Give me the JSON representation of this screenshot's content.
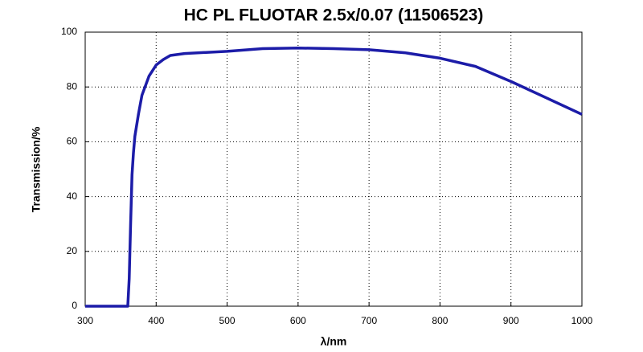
{
  "chart_data": {
    "type": "line",
    "title": "HC PL FLUOTAR 2.5x/0.07 (11506523)",
    "x_label": "λ/nm",
    "y_label": "Transmission/%",
    "x": [
      300,
      340,
      360,
      362,
      364,
      366,
      368,
      370,
      375,
      380,
      390,
      400,
      410,
      420,
      440,
      500,
      550,
      600,
      650,
      700,
      750,
      800,
      850,
      900,
      950,
      1000
    ],
    "series": [
      {
        "name": "Transmission",
        "color": "#1c1ca8",
        "values": [
          0,
          0,
          0,
          10,
          30,
          48,
          56,
          62,
          70,
          77,
          84,
          88,
          90,
          91.5,
          92.2,
          93,
          94,
          94.2,
          94,
          93.6,
          92.5,
          90.5,
          87.5,
          82,
          76,
          70
        ]
      }
    ],
    "xlim": [
      300,
      1000
    ],
    "ylim": [
      0,
      100
    ],
    "xticks": [
      300,
      400,
      500,
      600,
      700,
      800,
      900,
      1000
    ],
    "yticks": [
      0,
      20,
      40,
      60,
      80,
      100
    ],
    "grid": true
  }
}
